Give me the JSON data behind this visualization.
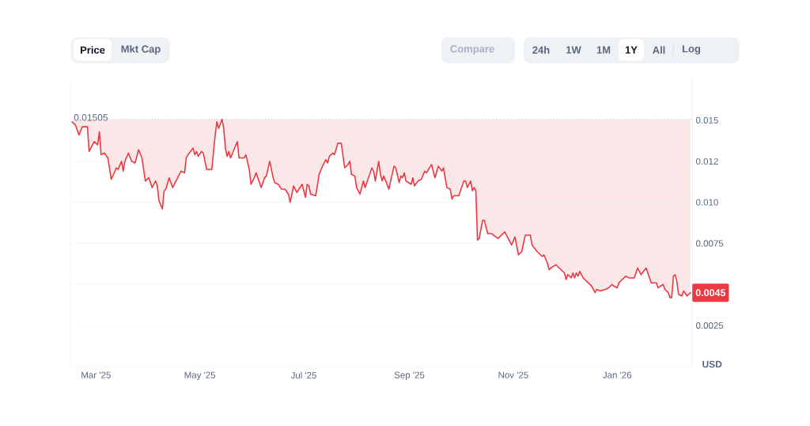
{
  "chart_data": {
    "type": "line",
    "x": [
      "2025-02-15",
      "2025-02-17",
      "2025-02-19",
      "2025-02-21",
      "2025-02-24",
      "2025-02-25",
      "2025-02-26",
      "2025-02-28",
      "2025-03-02",
      "2025-03-03",
      "2025-03-04",
      "2025-03-06",
      "2025-03-08",
      "2025-03-10",
      "2025-03-13",
      "2025-03-14",
      "2025-03-16",
      "2025-03-17",
      "2025-03-18",
      "2025-03-20",
      "2025-03-22",
      "2025-03-24",
      "2025-03-26",
      "2025-03-28",
      "2025-03-30",
      "2025-04-01",
      "2025-04-03",
      "2025-04-05",
      "2025-04-06",
      "2025-04-07",
      "2025-04-09",
      "2025-04-10",
      "2025-04-11",
      "2025-04-13",
      "2025-04-15",
      "2025-04-18",
      "2025-04-20",
      "2025-04-22",
      "2025-04-23",
      "2025-04-24",
      "2025-04-27",
      "2025-04-28",
      "2025-04-29",
      "2025-04-30",
      "2025-05-02",
      "2025-05-03",
      "2025-05-05",
      "2025-05-08",
      "2025-05-10",
      "2025-05-11",
      "2025-05-12",
      "2025-05-14",
      "2025-05-15",
      "2025-05-16",
      "2025-05-17",
      "2025-05-18",
      "2025-05-19",
      "2025-05-23",
      "2025-05-24",
      "2025-05-27",
      "2025-05-28",
      "2025-05-30",
      "2025-05-31",
      "2025-06-02",
      "2025-06-03",
      "2025-06-06",
      "2025-06-08",
      "2025-06-09",
      "2025-06-11",
      "2025-06-13",
      "2025-06-14",
      "2025-06-16",
      "2025-06-18",
      "2025-06-20",
      "2025-06-22",
      "2025-06-23",
      "2025-06-25",
      "2025-06-27",
      "2025-06-30",
      "2025-07-02",
      "2025-07-03",
      "2025-07-04",
      "2025-07-05",
      "2025-07-08",
      "2025-07-10",
      "2025-07-12",
      "2025-07-14",
      "2025-07-15",
      "2025-07-16",
      "2025-07-18",
      "2025-07-19",
      "2025-07-21",
      "2025-07-23",
      "2025-07-25",
      "2025-07-27",
      "2025-07-28",
      "2025-07-29",
      "2025-07-31",
      "2025-08-01",
      "2025-08-03",
      "2025-08-05",
      "2025-08-06",
      "2025-08-09",
      "2025-08-10",
      "2025-08-11",
      "2025-08-12",
      "2025-08-14",
      "2025-08-15",
      "2025-08-16",
      "2025-08-17",
      "2025-08-20",
      "2025-08-21",
      "2025-08-23",
      "2025-08-24",
      "2025-08-26",
      "2025-08-27",
      "2025-08-28",
      "2025-08-29",
      "2025-08-30",
      "2025-09-02",
      "2025-09-03",
      "2025-09-04",
      "2025-09-06",
      "2025-09-08",
      "2025-09-10",
      "2025-09-11",
      "2025-09-14",
      "2025-09-16",
      "2025-09-18",
      "2025-09-20",
      "2025-09-21",
      "2025-09-23",
      "2025-09-25",
      "2025-09-26",
      "2025-09-27",
      "2025-09-30",
      "2025-10-03",
      "2025-10-04",
      "2025-10-05",
      "2025-10-07",
      "2025-10-08",
      "2025-10-09",
      "2025-10-10",
      "2025-10-11",
      "2025-10-12",
      "2025-10-14",
      "2025-10-15",
      "2025-10-17",
      "2025-10-19",
      "2025-10-23",
      "2025-10-24",
      "2025-10-27",
      "2025-10-29",
      "2025-10-31",
      "2025-11-02",
      "2025-11-04",
      "2025-11-06",
      "2025-11-08",
      "2025-11-11",
      "2025-11-12",
      "2025-11-15",
      "2025-11-18",
      "2025-11-19",
      "2025-11-21",
      "2025-11-22",
      "2025-11-23",
      "2025-11-26",
      "2025-11-28",
      "2025-12-01",
      "2025-12-02",
      "2025-12-03",
      "2025-12-05",
      "2025-12-06",
      "2025-12-07",
      "2025-12-08",
      "2025-12-09",
      "2025-12-10",
      "2025-12-12",
      "2025-12-15",
      "2025-12-17",
      "2025-12-19",
      "2025-12-20",
      "2025-12-22",
      "2025-12-25",
      "2025-12-27",
      "2025-12-29",
      "2025-12-30",
      "2026-01-01",
      "2026-01-02",
      "2026-01-04",
      "2026-01-06",
      "2026-01-08",
      "2026-01-11",
      "2026-01-13",
      "2026-01-14",
      "2026-01-15",
      "2026-01-18",
      "2026-01-20",
      "2026-01-21",
      "2026-01-24",
      "2026-01-25",
      "2026-01-28",
      "2026-01-29",
      "2026-01-31",
      "2026-02-01",
      "2026-02-02",
      "2026-02-03",
      "2026-02-04",
      "2026-02-05",
      "2026-02-06",
      "2026-02-08",
      "2026-02-09",
      "2026-02-11",
      "2026-02-13"
    ],
    "series": [
      {
        "color": "#ea3943",
        "values": [
          0.0149,
          0.0147,
          0.0141,
          0.0146,
          0.0146,
          0.0131,
          0.0133,
          0.0137,
          0.0135,
          0.0143,
          0.0129,
          0.013,
          0.0127,
          0.0114,
          0.0121,
          0.012,
          0.0125,
          0.0119,
          0.0125,
          0.013,
          0.0125,
          0.0124,
          0.0132,
          0.0127,
          0.0113,
          0.0115,
          0.0109,
          0.0113,
          0.011,
          0.0101,
          0.0096,
          0.0107,
          0.0108,
          0.0115,
          0.0109,
          0.0115,
          0.0119,
          0.0118,
          0.0127,
          0.0129,
          0.0133,
          0.0129,
          0.0131,
          0.0128,
          0.0131,
          0.013,
          0.012,
          0.012,
          0.0141,
          0.0149,
          0.0145,
          0.01505,
          0.0145,
          0.0133,
          0.0128,
          0.0131,
          0.0127,
          0.0137,
          0.0127,
          0.0127,
          0.0129,
          0.012,
          0.0111,
          0.0115,
          0.0118,
          0.0109,
          0.0115,
          0.0116,
          0.0125,
          0.0115,
          0.0112,
          0.0111,
          0.0108,
          0.0108,
          0.0105,
          0.01,
          0.011,
          0.0106,
          0.0111,
          0.0103,
          0.0111,
          0.011,
          0.0105,
          0.0104,
          0.0117,
          0.0122,
          0.0126,
          0.0124,
          0.0128,
          0.013,
          0.0129,
          0.0136,
          0.0136,
          0.0121,
          0.0123,
          0.0125,
          0.0117,
          0.0116,
          0.0109,
          0.0105,
          0.0113,
          0.0109,
          0.0118,
          0.0121,
          0.0119,
          0.0113,
          0.0125,
          0.0117,
          0.0113,
          0.0116,
          0.0108,
          0.0113,
          0.0122,
          0.0121,
          0.0112,
          0.0116,
          0.0115,
          0.0118,
          0.0113,
          0.0111,
          0.0115,
          0.011,
          0.0113,
          0.0114,
          0.0119,
          0.0118,
          0.0123,
          0.0115,
          0.0122,
          0.0119,
          0.0121,
          0.0109,
          0.0108,
          0.0102,
          0.0104,
          0.0104,
          0.0113,
          0.0113,
          0.0109,
          0.0113,
          0.0107,
          0.0109,
          0.0107,
          0.0077,
          0.0078,
          0.0089,
          0.0089,
          0.0081,
          0.0081,
          0.0078,
          0.0079,
          0.0082,
          0.0078,
          0.0074,
          0.0079,
          0.0068,
          0.007,
          0.008,
          0.008,
          0.0074,
          0.007,
          0.0067,
          0.0068,
          0.0063,
          0.0059,
          0.006,
          0.0062,
          0.006,
          0.0057,
          0.0053,
          0.0056,
          0.0054,
          0.0057,
          0.0054,
          0.0057,
          0.0055,
          0.0058,
          0.0054,
          0.0051,
          0.0049,
          0.0045,
          0.0047,
          0.0046,
          0.0047,
          0.0048,
          0.005,
          0.0049,
          0.0048,
          0.0051,
          0.0053,
          0.0055,
          0.0054,
          0.0054,
          0.006,
          0.0058,
          0.0056,
          0.006,
          0.0054,
          0.0051,
          0.0051,
          0.0048,
          0.005,
          0.0047,
          0.0045,
          0.0042,
          0.0042,
          0.0055,
          0.0056,
          0.0052,
          0.0044,
          0.0043,
          0.0046,
          0.0043,
          0.0045
        ],
        "lower": [
          0.0149,
          0.0147,
          0.0141,
          0.0146,
          0.0146,
          0.0131,
          0.0133,
          0.0137,
          0.0135,
          0.0143,
          0.0129,
          0.013,
          0.0127,
          0.0114,
          0.0121,
          0.012,
          0.0125,
          0.0119,
          0.0125,
          0.013,
          0.0125,
          0.0124,
          0.0132,
          0.0127,
          0.0113,
          0.0115,
          0.0109,
          0.0113,
          0.011,
          0.0101,
          0.0096,
          0.0107,
          0.0108,
          0.0115,
          0.0109,
          0.0115,
          0.0119,
          0.0118,
          0.0127,
          0.0129,
          0.0133,
          0.0129,
          0.0131,
          0.0128,
          0.0131,
          0.013,
          0.012,
          0.012,
          0.0141,
          0.0149,
          0.0145,
          0.01505,
          0.0145,
          0.0133,
          0.0128,
          0.0131,
          0.0127,
          0.0137,
          0.0127,
          0.0127,
          0.0129,
          0.012,
          0.0111,
          0.0115,
          0.0118,
          0.0109,
          0.0115,
          0.0116,
          0.0125,
          0.0115,
          0.0112,
          0.0111,
          0.0108,
          0.0108,
          0.0105,
          0.01,
          0.011,
          0.0106,
          0.0111,
          0.0103,
          0.0111,
          0.011,
          0.0105,
          0.0104,
          0.0117,
          0.0122,
          0.0126,
          0.0124,
          0.0128,
          0.013,
          0.0129,
          0.0136,
          0.0136,
          0.0121,
          0.0123,
          0.0125,
          0.0117,
          0.0116,
          0.0109,
          0.0105,
          0.0113,
          0.0109,
          0.0118,
          0.0121,
          0.0119,
          0.0113,
          0.0125,
          0.0117,
          0.0113,
          0.0116,
          0.0108,
          0.0113,
          0.0122,
          0.0121,
          0.0112,
          0.0116,
          0.0115,
          0.0118,
          0.0113,
          0.0111,
          0.0115,
          0.011,
          0.0113,
          0.0114,
          0.0119,
          0.0118,
          0.0123,
          0.0115,
          0.0122,
          0.0119,
          0.0121,
          0.0109,
          0.0108,
          0.0102,
          0.0104,
          0.0104,
          0.0113,
          0.0113,
          0.0109,
          0.0113,
          0.0107,
          0.0109,
          0.0107,
          0.0077,
          0.0078,
          0.0089,
          0.0089,
          0.0081,
          0.0081,
          0.0078,
          0.0079,
          0.0082,
          0.0078,
          0.0074,
          0.0079,
          0.0068,
          0.007,
          0.008,
          0.008,
          0.0074,
          0.007,
          0.0067,
          0.0068,
          0.0063,
          0.0059,
          0.006,
          0.0062,
          0.006,
          0.0057,
          0.0053,
          0.0056,
          0.0054,
          0.0057,
          0.0054,
          0.0057,
          0.0055,
          0.0058,
          0.0054,
          0.0051,
          0.0049,
          0.0045,
          0.0047,
          0.0046,
          0.0047,
          0.0048,
          0.005,
          0.0049,
          0.0048,
          0.0051,
          0.0053,
          0.0055,
          0.0054,
          0.0054,
          0.006,
          0.0058,
          0.0056,
          0.006,
          0.0054,
          0.0051,
          0.0051,
          0.0048,
          0.005,
          0.0047,
          0.0045,
          0.0042,
          0.0042,
          0.0055,
          0.0056,
          0.0052,
          0.0044,
          0.0043,
          0.0046,
          0.0043,
          0.0045
        ],
        "upper": [
          0.01505,
          0.01505,
          0.01505,
          0.01505,
          0.01505,
          0.01505,
          0.01505,
          0.01505,
          0.01505,
          0.01505,
          0.01505,
          0.01505,
          0.01505,
          0.01505,
          0.01505,
          0.01505,
          0.01505,
          0.01505,
          0.01505,
          0.01505,
          0.01505,
          0.01505,
          0.01505,
          0.01505,
          0.01505,
          0.01505,
          0.01505,
          0.01505,
          0.01505,
          0.01505,
          0.01505,
          0.01505,
          0.01505,
          0.01505,
          0.01505,
          0.01505,
          0.01505,
          0.01505,
          0.01505,
          0.01505,
          0.01505,
          0.01505,
          0.01505,
          0.01505,
          0.01505,
          0.01505,
          0.01505,
          0.01505,
          0.01505,
          0.01505,
          0.01505,
          0.01505,
          0.01505,
          0.01505,
          0.01505,
          0.01505,
          0.01505,
          0.01505,
          0.01505,
          0.01505,
          0.01505,
          0.01505,
          0.01505,
          0.01505,
          0.01505,
          0.01505,
          0.01505,
          0.01505,
          0.01505,
          0.01505,
          0.01505,
          0.01505,
          0.01505,
          0.01505,
          0.01505,
          0.01505,
          0.01505,
          0.01505,
          0.01505,
          0.01505,
          0.01505,
          0.01505,
          0.01505,
          0.01505,
          0.01505,
          0.01505,
          0.01505,
          0.01505,
          0.01505,
          0.01505,
          0.01505,
          0.01505,
          0.01505,
          0.01505,
          0.01505,
          0.01505,
          0.01505,
          0.01505,
          0.01505,
          0.01505,
          0.01505,
          0.01505,
          0.01505,
          0.01505,
          0.01505,
          0.01505,
          0.01505,
          0.01505,
          0.01505,
          0.01505,
          0.01505,
          0.01505,
          0.01505,
          0.01505,
          0.01505,
          0.01505,
          0.01505,
          0.01505,
          0.01505,
          0.01505,
          0.01505,
          0.01505,
          0.01505,
          0.01505,
          0.01505,
          0.01505,
          0.01505,
          0.01505,
          0.01505,
          0.01505,
          0.01505,
          0.01505,
          0.01505,
          0.01505,
          0.01505,
          0.01505,
          0.01505,
          0.01505,
          0.01505,
          0.01505,
          0.01505,
          0.01505,
          0.01505,
          0.01505,
          0.01505,
          0.01505,
          0.01505,
          0.01505,
          0.01505,
          0.01505,
          0.01505,
          0.01505,
          0.01505,
          0.01505,
          0.01505,
          0.01505,
          0.01505,
          0.01505,
          0.01505,
          0.01505,
          0.01505,
          0.01505,
          0.01505,
          0.01505,
          0.01505,
          0.01505,
          0.01505,
          0.01505,
          0.01505,
          0.01505,
          0.01505,
          0.01505,
          0.01505,
          0.01505,
          0.01505,
          0.01505,
          0.01505,
          0.01505,
          0.01505,
          0.01505,
          0.01505,
          0.01505,
          0.01505,
          0.01505,
          0.01505,
          0.01505,
          0.01505,
          0.01505,
          0.01505,
          0.01505,
          0.01505,
          0.01505,
          0.01505,
          0.01505,
          0.01505,
          0.01505,
          0.01505,
          0.01505,
          0.01505,
          0.01505,
          0.01505,
          0.01505,
          0.01505,
          0.01505,
          0.01505,
          0.01505,
          0.01505,
          0.01505,
          0.01505,
          0.01505,
          0.01505,
          0.01505,
          0.01505,
          0.01505
        ]
      }
    ],
    "xlim": [
      "2025-02-14",
      "2026-02-14"
    ],
    "xticks": [
      {
        "value": "2025-03-01",
        "label": "Mar '25"
      },
      {
        "value": "2025-05-01",
        "label": "May '25"
      },
      {
        "value": "2025-07-01",
        "label": "Jul '25"
      },
      {
        "value": "2025-09-01",
        "label": "Sep '25"
      },
      {
        "value": "2025-11-01",
        "label": "Nov '25"
      },
      {
        "value": "2026-01-01",
        "label": "Jan '26"
      }
    ],
    "ylim": [
      0,
      0.0175
    ],
    "yticks": [
      0.0025,
      {
        "value": 0.005,
        "label": null
      },
      0.0075,
      {
        "value": 0.01,
        "label": "0.010"
      },
      {
        "value": 0.0125,
        "label": "0.012"
      },
      0.015
    ],
    "ylabel": "USD",
    "grid": "y",
    "ref_lines": [
      {
        "axis": "y",
        "value": 0.01505,
        "label": "0.01505",
        "color": "#b8bec9",
        "line_style": "dotted"
      }
    ],
    "annotations": [
      "Price",
      "Mkt Cap",
      "Compare",
      "24h",
      "1W",
      "1M",
      "1Y",
      "All",
      "Log",
      "0.0045"
    ]
  }
}
